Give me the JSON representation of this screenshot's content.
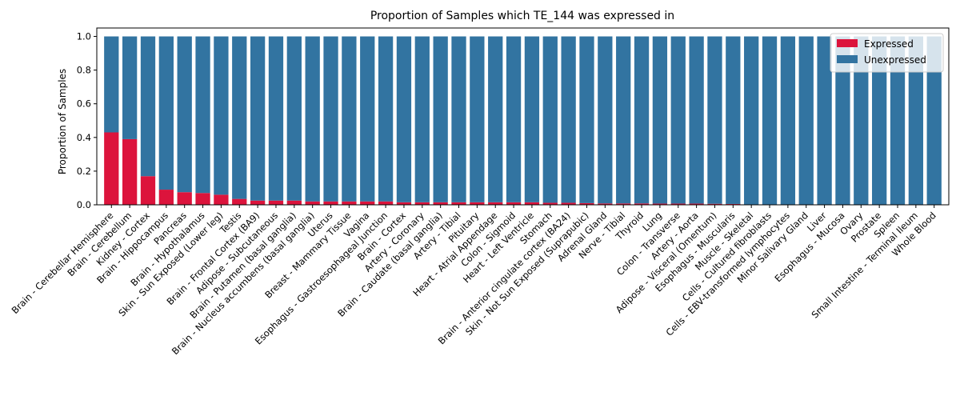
{
  "chart_data": {
    "type": "bar",
    "stacked": true,
    "title": "Proportion of Samples which TE_144 was expressed in",
    "xlabel": "",
    "ylabel": "Proportion of Samples",
    "ylim": [
      0,
      1.05
    ],
    "yticks": [
      0.0,
      0.2,
      0.4,
      0.6,
      0.8,
      1.0
    ],
    "ytick_labels": [
      "0.0",
      "0.2",
      "0.4",
      "0.6",
      "0.8",
      "1.0"
    ],
    "grid": false,
    "legend_position": "top-right",
    "categories": [
      "Brain - Cerebellar Hemisphere",
      "Brain - Cerebellum",
      "Kidney - Cortex",
      "Brain - Hippocampus",
      "Pancreas",
      "Brain - Hypothalamus",
      "Skin - Sun Exposed (Lower leg)",
      "Testis",
      "Brain - Frontal Cortex (BA9)",
      "Adipose - Subcutaneous",
      "Brain - Putamen (basal ganglia)",
      "Brain - Nucleus accumbens (basal ganglia)",
      "Uterus",
      "Breast - Mammary Tissue",
      "Vagina",
      "Esophagus - Gastroesophageal Junction",
      "Brain - Cortex",
      "Artery - Coronary",
      "Brain - Caudate (basal ganglia)",
      "Artery - Tibial",
      "Pituitary",
      "Heart - Atrial Appendage",
      "Colon - Sigmoid",
      "Heart - Left Ventricle",
      "Stomach",
      "Brain - Anterior cingulate cortex (BA24)",
      "Skin - Not Sun Exposed (Suprapubic)",
      "Adrenal Gland",
      "Nerve - Tibial",
      "Thyroid",
      "Lung",
      "Colon - Transverse",
      "Artery - Aorta",
      "Adipose - Visceral (Omentum)",
      "Esophagus - Muscularis",
      "Muscle - Skeletal",
      "Cells - Cultured fibroblasts",
      "Cells - EBV-transformed lymphocytes",
      "Minor Salivary Gland",
      "Liver",
      "Esophagus - Mucosa",
      "Ovary",
      "Prostate",
      "Spleen",
      "Small Intestine - Terminal Ileum",
      "Whole Blood"
    ],
    "series": [
      {
        "name": "Expressed",
        "color": "#dc143c",
        "values": [
          0.43,
          0.39,
          0.17,
          0.09,
          0.075,
          0.07,
          0.06,
          0.035,
          0.025,
          0.025,
          0.025,
          0.02,
          0.02,
          0.02,
          0.02,
          0.02,
          0.015,
          0.015,
          0.015,
          0.015,
          0.015,
          0.015,
          0.015,
          0.015,
          0.012,
          0.012,
          0.01,
          0.008,
          0.008,
          0.008,
          0.007,
          0.007,
          0.007,
          0.006,
          0.005,
          0,
          0,
          0,
          0,
          0,
          0,
          0,
          0,
          0,
          0,
          0
        ]
      },
      {
        "name": "Unexpressed",
        "color": "#3274a1",
        "values": [
          0.57,
          0.61,
          0.83,
          0.91,
          0.925,
          0.93,
          0.94,
          0.965,
          0.975,
          0.975,
          0.975,
          0.98,
          0.98,
          0.98,
          0.98,
          0.98,
          0.985,
          0.985,
          0.985,
          0.985,
          0.985,
          0.985,
          0.985,
          0.985,
          0.988,
          0.988,
          0.99,
          0.992,
          0.992,
          0.992,
          0.993,
          0.993,
          0.993,
          0.994,
          0.995,
          1,
          1,
          1,
          1,
          1,
          1,
          1,
          1,
          1,
          1,
          1
        ]
      }
    ]
  }
}
